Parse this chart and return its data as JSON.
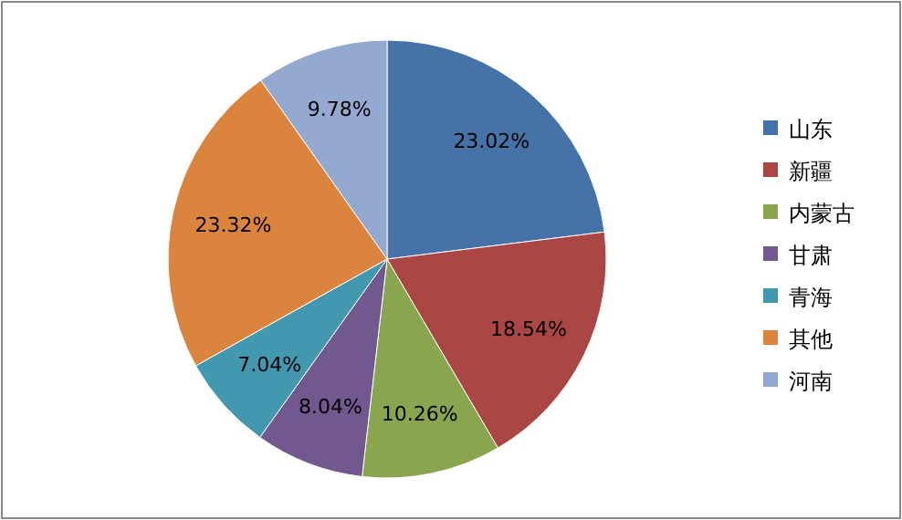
{
  "chart_data": {
    "type": "pie",
    "categories": [
      "山东",
      "新疆",
      "内蒙古",
      "甘肃",
      "青海",
      "其他",
      "河南"
    ],
    "values": [
      23.02,
      18.54,
      10.26,
      8.04,
      7.04,
      23.32,
      9.78
    ],
    "colors": [
      "#4572a7",
      "#aa4643",
      "#89a54e",
      "#71588f",
      "#4198af",
      "#db843d",
      "#93a9cf"
    ],
    "value_labels": [
      "23.02%",
      "18.54%",
      "10.26%",
      "8.04%",
      "7.04%",
      "23.32%",
      "9.78%"
    ],
    "legend": "right"
  }
}
